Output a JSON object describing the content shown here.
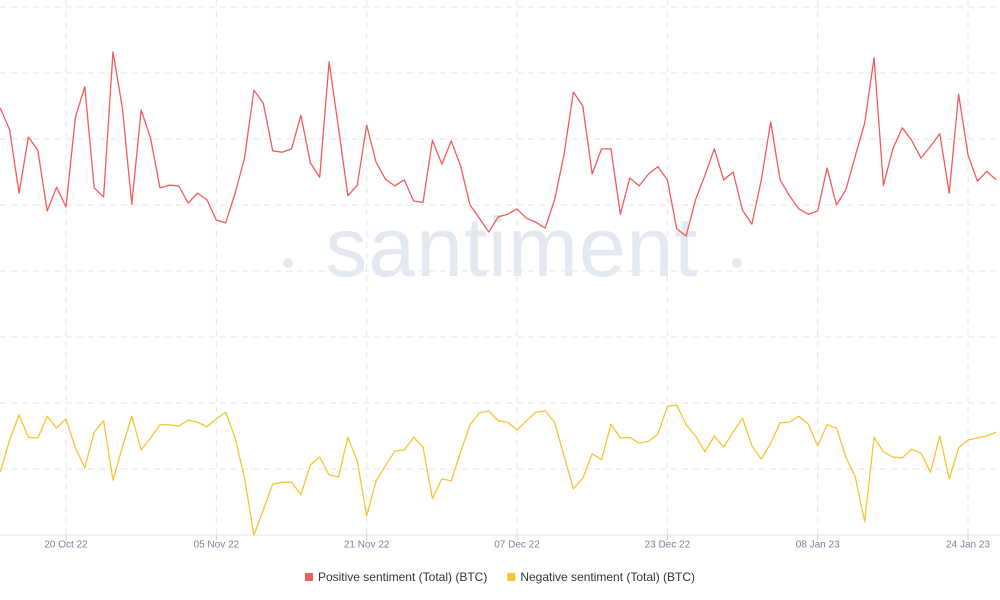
{
  "chart_data": {
    "type": "line",
    "watermark": "santiment",
    "categories": [
      null,
      null,
      null,
      null,
      null,
      null,
      null,
      "20 Oct 22",
      null,
      null,
      null,
      null,
      null,
      null,
      null,
      null,
      null,
      null,
      null,
      null,
      null,
      null,
      null,
      "05 Nov 22",
      null,
      null,
      null,
      null,
      null,
      null,
      null,
      null,
      null,
      null,
      null,
      null,
      null,
      null,
      null,
      "21 Nov 22",
      null,
      null,
      null,
      null,
      null,
      null,
      null,
      null,
      null,
      null,
      null,
      null,
      null,
      null,
      null,
      "07 Dec 22",
      null,
      null,
      null,
      null,
      null,
      null,
      null,
      null,
      null,
      null,
      null,
      null,
      null,
      null,
      null,
      "23 Dec 22",
      null,
      null,
      null,
      null,
      null,
      null,
      null,
      null,
      null,
      null,
      null,
      null,
      null,
      null,
      null,
      "08 Jan 23",
      null,
      null,
      null,
      null,
      null,
      null,
      null,
      null,
      null,
      null,
      null,
      null,
      null,
      null,
      null,
      "24 Jan 23",
      null,
      null,
      null
    ],
    "series": [
      {
        "name": "Positive sentiment (Total) (BTC)",
        "color": "#f25b5b",
        "values": [
          647,
          614,
          518,
          603,
          583,
          491,
          527,
          497,
          633,
          679,
          526,
          512,
          732,
          647,
          501,
          644,
          601,
          526,
          530,
          529,
          503,
          518,
          508,
          477,
          473,
          518,
          571,
          674,
          654,
          582,
          580,
          585,
          636,
          564,
          542,
          717,
          617,
          514,
          530,
          621,
          565,
          539,
          529,
          538,
          506,
          504,
          598,
          562,
          597,
          559,
          500,
          480,
          459,
          482,
          486,
          494,
          480,
          474,
          465,
          508,
          576,
          671,
          650,
          547,
          585,
          585,
          486,
          541,
          529,
          547,
          558,
          538,
          464,
          453,
          508,
          545,
          585,
          538,
          550,
          492,
          471,
          538,
          626,
          538,
          514,
          494,
          486,
          491,
          556,
          500,
          523,
          574,
          624,
          723,
          530,
          585,
          617,
          598,
          571,
          589,
          608,
          518,
          668,
          576,
          536,
          551,
          538
        ]
      },
      {
        "name": "Negative sentiment (Total) (BTC)",
        "color": "#f7c531",
        "values": [
          95,
          144,
          182,
          148,
          147,
          180,
          162,
          176,
          132,
          102,
          156,
          173,
          83,
          133,
          180,
          129,
          147,
          167,
          167,
          165,
          174,
          171,
          164,
          176,
          186,
          147,
          86,
          0,
          38,
          77,
          80,
          80,
          61,
          106,
          118,
          91,
          88,
          148,
          112,
          29,
          82,
          105,
          127,
          129,
          148,
          133,
          55,
          85,
          82,
          126,
          167,
          185,
          188,
          173,
          171,
          159,
          173,
          186,
          188,
          171,
          120,
          70,
          86,
          123,
          114,
          168,
          147,
          148,
          139,
          142,
          153,
          195,
          197,
          167,
          150,
          126,
          150,
          133,
          156,
          177,
          135,
          115,
          139,
          170,
          171,
          180,
          168,
          135,
          167,
          162,
          118,
          88,
          20,
          148,
          126,
          118,
          117,
          130,
          124,
          95,
          150,
          85,
          132,
          144,
          147,
          150,
          156
        ]
      }
    ],
    "ylim": [
      0,
      800
    ],
    "yticks": [
      0,
      100,
      200,
      300,
      400,
      500,
      600,
      700,
      800
    ],
    "grid": true,
    "legend": "bottom"
  }
}
